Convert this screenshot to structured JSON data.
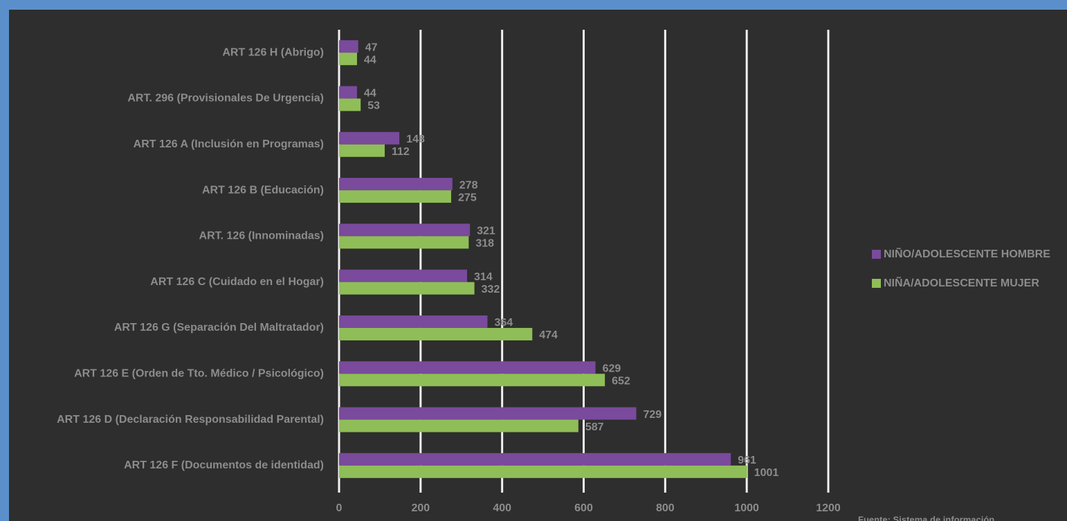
{
  "chart_data": {
    "type": "hbar",
    "categories": [
      "ART 126 H  (Abrigo)",
      "ART. 296  (Provisionales De Urgencia)",
      "ART 126 A (Inclusión en Programas)",
      "ART 126 B  (Educación)",
      "ART. 126  (Innominadas)",
      "ART 126 C  (Cuidado en el Hogar)",
      "ART 126 G  (Separación Del Maltratador)",
      "ART 126 E  (Orden de Tto. Médico / Psicológico)",
      "ART 126 D  (Declaración Responsabilidad Parental)",
      "ART 126 F   (Documentos de identidad)"
    ],
    "series": [
      {
        "name": "NIÑO/ADOLESCENTE HOMBRE",
        "color": "#7a4a9c",
        "values": [
          47,
          44,
          148,
          278,
          321,
          314,
          364,
          629,
          729,
          961
        ]
      },
      {
        "name": "NIÑA/ADOLESCENTE MUJER",
        "color": "#8fbe58",
        "values": [
          44,
          53,
          112,
          275,
          318,
          332,
          474,
          652,
          587,
          1001
        ]
      }
    ],
    "xlim": [
      0,
      1200
    ],
    "xticks": [
      0,
      200,
      400,
      600,
      800,
      1000,
      1200
    ],
    "grid": true,
    "legend": "right",
    "note": "Fuente: Sistema de información"
  }
}
